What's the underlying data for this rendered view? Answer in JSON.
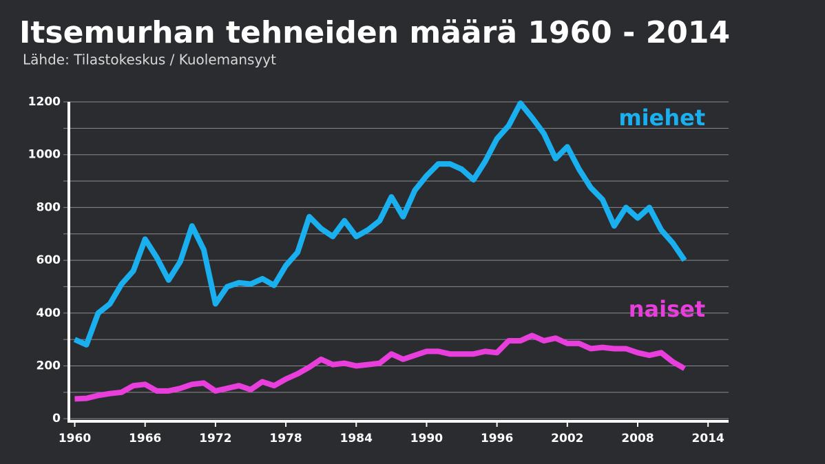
{
  "chart_data": {
    "type": "line",
    "title": "Itsemurhan tehneiden määrä 1960 - 2014",
    "subtitle": "Lähde: Tilastokeskus / Kuolemansyyt",
    "x": [
      1960,
      1961,
      1962,
      1963,
      1964,
      1965,
      1966,
      1967,
      1968,
      1969,
      1970,
      1971,
      1972,
      1973,
      1974,
      1975,
      1976,
      1977,
      1978,
      1979,
      1980,
      1981,
      1982,
      1983,
      1984,
      1985,
      1986,
      1987,
      1988,
      1989,
      1990,
      1991,
      1992,
      1993,
      1994,
      1995,
      1996,
      1997,
      1998,
      1999,
      2000,
      2001,
      2002,
      2003,
      2004,
      2005,
      2006,
      2007,
      2008,
      2009,
      2010,
      2011,
      2012
    ],
    "series": [
      {
        "name": "miehet",
        "color": "#1ab0ef",
        "values": [
          300,
          280,
          400,
          435,
          510,
          560,
          680,
          610,
          525,
          595,
          730,
          640,
          435,
          500,
          515,
          510,
          530,
          505,
          580,
          630,
          765,
          720,
          690,
          750,
          690,
          715,
          750,
          840,
          765,
          865,
          920,
          965,
          965,
          945,
          905,
          975,
          1060,
          1110,
          1195,
          1140,
          1080,
          985,
          1030,
          945,
          875,
          830,
          730,
          800,
          760,
          800,
          715,
          665,
          600
        ]
      },
      {
        "name": "naiset",
        "color": "#e83fdc",
        "values": [
          75,
          77,
          88,
          95,
          100,
          125,
          130,
          105,
          105,
          115,
          130,
          135,
          105,
          115,
          125,
          110,
          140,
          125,
          150,
          170,
          195,
          225,
          205,
          210,
          200,
          205,
          210,
          245,
          225,
          240,
          255,
          255,
          245,
          245,
          245,
          255,
          250,
          295,
          295,
          315,
          295,
          305,
          285,
          285,
          265,
          270,
          265,
          265,
          250,
          240,
          250,
          215,
          190
        ]
      }
    ],
    "xlim": [
      1959.5,
      2015.75
    ],
    "xticks": [
      1960,
      1966,
      1972,
      1978,
      1984,
      1990,
      1996,
      2002,
      2008,
      2014
    ],
    "ylim": [
      -10,
      1200
    ],
    "yticks": [
      0,
      200,
      400,
      600,
      800,
      1000,
      1200
    ],
    "yminorticks": [
      100,
      300,
      500,
      700,
      900,
      1100
    ],
    "grid": true
  }
}
